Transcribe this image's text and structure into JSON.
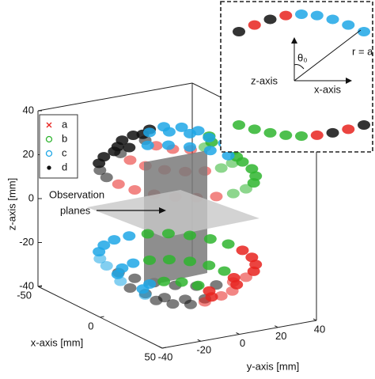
{
  "chart_data": {
    "type": "scatter3d",
    "xlabel": "x-axis [mm]",
    "ylabel": "y-axis [mm]",
    "zlabel": "z-axis [mm]",
    "xlim": [
      -50,
      50
    ],
    "xticks": [
      -50,
      0,
      50
    ],
    "ylim": [
      -40,
      40
    ],
    "yticks": [
      -40,
      -20,
      0,
      20,
      40
    ],
    "zlim": [
      -40,
      40
    ],
    "zticks": [
      -40,
      -20,
      0,
      20,
      40
    ],
    "legend": "upper left",
    "series": [
      {
        "name": "a",
        "color": "#e8231f",
        "marker": "x"
      },
      {
        "name": "b",
        "color": "#2fb52f",
        "marker": "o"
      },
      {
        "name": "c",
        "color": "#1ea7e6",
        "marker": "o"
      },
      {
        "name": "d",
        "color": "#111111",
        "marker": "."
      }
    ],
    "annotation": [
      "Observation",
      "planes"
    ],
    "inset": {
      "z_label": "z-axis",
      "x_label": "x-axis",
      "radius_label": "r = a",
      "angle_label": "θ₀"
    }
  }
}
